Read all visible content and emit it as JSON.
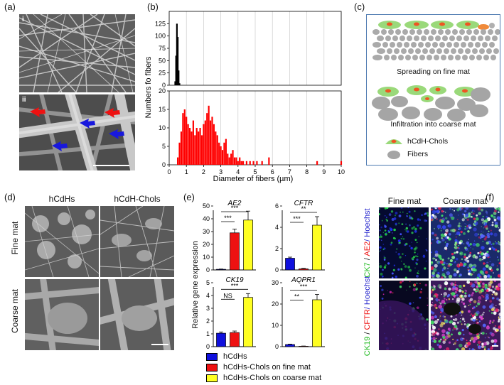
{
  "panel_labels": {
    "a": "(a)",
    "b": "(b)",
    "c": "(c)",
    "d": "(d)",
    "e": "(e)",
    "f": "(f)"
  },
  "panel_a": {
    "top_label": "i",
    "bottom_label": "ii"
  },
  "chart_data": [
    {
      "type": "bar",
      "panel": "b-top",
      "ylabel": "Numbers fo fibers",
      "ylim": [
        0,
        150
      ],
      "yticks": [
        0,
        25,
        50,
        75,
        100,
        125
      ],
      "x": [
        0.35,
        0.4,
        0.45,
        0.5,
        0.55,
        0.6
      ],
      "values": [
        8,
        60,
        125,
        98,
        30,
        4
      ],
      "color": "#000000"
    },
    {
      "type": "bar",
      "panel": "b-bottom",
      "xlabel": "Diameter of fibers (µm)",
      "ylim": [
        0,
        20
      ],
      "yticks": [
        0,
        5,
        10,
        15,
        20
      ],
      "xlim": [
        0,
        10
      ],
      "xticks": [
        0,
        1,
        2,
        3,
        4,
        5,
        6,
        7,
        8,
        9,
        10
      ],
      "x": [
        0.5,
        0.6,
        0.7,
        0.8,
        0.9,
        1.0,
        1.1,
        1.2,
        1.3,
        1.4,
        1.5,
        1.6,
        1.7,
        1.8,
        1.9,
        2.0,
        2.1,
        2.2,
        2.3,
        2.4,
        2.5,
        2.6,
        2.7,
        2.8,
        2.9,
        3.0,
        3.1,
        3.2,
        3.3,
        3.4,
        3.5,
        3.6,
        3.7,
        3.8,
        3.9,
        4.0,
        4.1,
        4.2,
        4.3,
        4.5,
        4.7,
        4.9,
        5.1,
        5.4,
        5.8,
        8.6,
        10.0
      ],
      "values": [
        2,
        6,
        9,
        14,
        15,
        13,
        11,
        10,
        9,
        12,
        8,
        10,
        9,
        10,
        8,
        11,
        12,
        14,
        16,
        12,
        13,
        11,
        9,
        8,
        6,
        5,
        4,
        6,
        7,
        3,
        2,
        3,
        4,
        2,
        2,
        1,
        2,
        1,
        1,
        1,
        1,
        1,
        1,
        1,
        2,
        1,
        1
      ],
      "color": "#ff0000"
    },
    {
      "type": "bar",
      "panel": "e-AE2",
      "title": "AE2",
      "categories": [
        "hCdHs",
        "hCdHs-Chols on fine mat",
        "hCdHs-Chols on coarse mat"
      ],
      "values": [
        0.5,
        29,
        39
      ],
      "errors": [
        0.2,
        3,
        7
      ],
      "ylim": [
        0,
        50
      ],
      "yticks": [
        0,
        10,
        20,
        30,
        40,
        50
      ],
      "significance": [
        "***",
        "***"
      ]
    },
    {
      "type": "bar",
      "panel": "e-CFTR",
      "title": "CFTR",
      "categories": [
        "hCdHs",
        "hCdHs-Chols on fine mat",
        "hCdHs-Chols on coarse mat"
      ],
      "values": [
        1.1,
        0.1,
        4.2
      ],
      "errors": [
        0.1,
        0.05,
        0.8
      ],
      "ylim": [
        0,
        6
      ],
      "yticks": [
        0,
        2,
        4,
        6
      ],
      "significance": [
        "***",
        "**"
      ]
    },
    {
      "type": "bar",
      "panel": "e-CK19",
      "title": "CK19",
      "categories": [
        "hCdHs",
        "hCdHs-Chols on fine mat",
        "hCdHs-Chols on coarse mat"
      ],
      "values": [
        1.05,
        1.1,
        3.85
      ],
      "errors": [
        0.1,
        0.12,
        0.3
      ],
      "ylim": [
        0,
        5
      ],
      "yticks": [
        0,
        1,
        2,
        3,
        4,
        5
      ],
      "significance": [
        "NS",
        "***"
      ]
    },
    {
      "type": "bar",
      "panel": "e-AQPR1",
      "title": "AQPR1",
      "categories": [
        "hCdHs",
        "hCdHs-Chols on fine mat",
        "hCdHs-Chols on coarse mat"
      ],
      "values": [
        1,
        0.2,
        22
      ],
      "errors": [
        0.2,
        0.1,
        2.5
      ],
      "ylim": [
        0,
        30
      ],
      "yticks": [
        0,
        10,
        20,
        30
      ],
      "significance": [
        "**",
        "***"
      ]
    }
  ],
  "panel_c": {
    "caption_fine": "Spreading on fine mat",
    "caption_coarse": "Infiltration into coarse mat",
    "legend_cells": "hCdH-Chols",
    "legend_fibers": "Fibers"
  },
  "panel_d": {
    "col1": "hCdHs",
    "col2": "hCdH-Chols",
    "row1": "Fine mat",
    "row2": "Coarse mat"
  },
  "panel_e": {
    "ylabel": "Relative gene expression",
    "legend": [
      {
        "label": "hCdHs",
        "color": "#1010dd"
      },
      {
        "label": "hCdHs-Chols on fine mat",
        "color": "#ee1111"
      },
      {
        "label": "hCdHs-Chols on coarse mat",
        "color": "#ffff22"
      }
    ]
  },
  "panel_f": {
    "col1": "Fine mat",
    "col2": "Coarse mat",
    "row1": [
      {
        "text": "CK7",
        "color": "#22bb22"
      },
      {
        "text": " / ",
        "color": "#111111"
      },
      {
        "text": "AE2",
        "color": "#ee1111"
      },
      {
        "text": "/ Hoechst",
        "color": "#2222cc"
      }
    ],
    "row2": [
      {
        "text": "CK19",
        "color": "#22bb22"
      },
      {
        "text": " / ",
        "color": "#111111"
      },
      {
        "text": "CFTR",
        "color": "#ee1111"
      },
      {
        "text": "/ Hoechst",
        "color": "#2222cc"
      }
    ]
  }
}
